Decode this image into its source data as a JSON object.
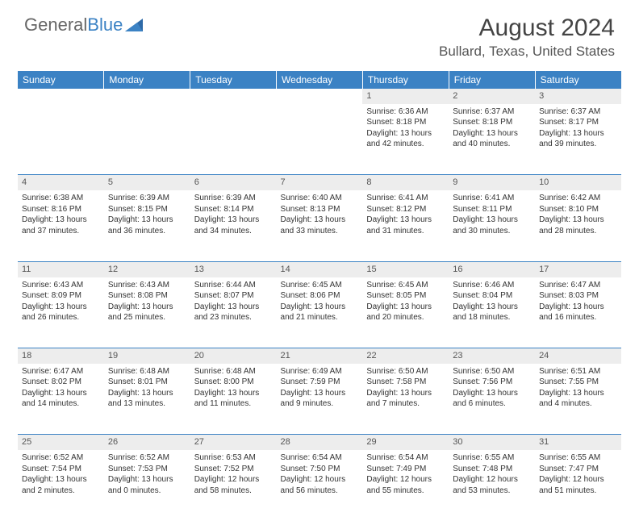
{
  "logo": {
    "text1": "General",
    "text2": "Blue"
  },
  "title": "August 2024",
  "location": "Bullard, Texas, United States",
  "colors": {
    "header_bg": "#3b82c4",
    "header_text": "#ffffff",
    "daynum_bg": "#ededed",
    "border": "#3b82c4",
    "text": "#333333",
    "logo_gray": "#666666",
    "logo_blue": "#3b82c4"
  },
  "weekdays": [
    "Sunday",
    "Monday",
    "Tuesday",
    "Wednesday",
    "Thursday",
    "Friday",
    "Saturday"
  ],
  "weeks": [
    {
      "nums": [
        "",
        "",
        "",
        "",
        "1",
        "2",
        "3"
      ],
      "cells": [
        null,
        null,
        null,
        null,
        {
          "sunrise": "6:36 AM",
          "sunset": "8:18 PM",
          "dl1": "Daylight: 13 hours",
          "dl2": "and 42 minutes."
        },
        {
          "sunrise": "6:37 AM",
          "sunset": "8:18 PM",
          "dl1": "Daylight: 13 hours",
          "dl2": "and 40 minutes."
        },
        {
          "sunrise": "6:37 AM",
          "sunset": "8:17 PM",
          "dl1": "Daylight: 13 hours",
          "dl2": "and 39 minutes."
        }
      ]
    },
    {
      "nums": [
        "4",
        "5",
        "6",
        "7",
        "8",
        "9",
        "10"
      ],
      "cells": [
        {
          "sunrise": "6:38 AM",
          "sunset": "8:16 PM",
          "dl1": "Daylight: 13 hours",
          "dl2": "and 37 minutes."
        },
        {
          "sunrise": "6:39 AM",
          "sunset": "8:15 PM",
          "dl1": "Daylight: 13 hours",
          "dl2": "and 36 minutes."
        },
        {
          "sunrise": "6:39 AM",
          "sunset": "8:14 PM",
          "dl1": "Daylight: 13 hours",
          "dl2": "and 34 minutes."
        },
        {
          "sunrise": "6:40 AM",
          "sunset": "8:13 PM",
          "dl1": "Daylight: 13 hours",
          "dl2": "and 33 minutes."
        },
        {
          "sunrise": "6:41 AM",
          "sunset": "8:12 PM",
          "dl1": "Daylight: 13 hours",
          "dl2": "and 31 minutes."
        },
        {
          "sunrise": "6:41 AM",
          "sunset": "8:11 PM",
          "dl1": "Daylight: 13 hours",
          "dl2": "and 30 minutes."
        },
        {
          "sunrise": "6:42 AM",
          "sunset": "8:10 PM",
          "dl1": "Daylight: 13 hours",
          "dl2": "and 28 minutes."
        }
      ]
    },
    {
      "nums": [
        "11",
        "12",
        "13",
        "14",
        "15",
        "16",
        "17"
      ],
      "cells": [
        {
          "sunrise": "6:43 AM",
          "sunset": "8:09 PM",
          "dl1": "Daylight: 13 hours",
          "dl2": "and 26 minutes."
        },
        {
          "sunrise": "6:43 AM",
          "sunset": "8:08 PM",
          "dl1": "Daylight: 13 hours",
          "dl2": "and 25 minutes."
        },
        {
          "sunrise": "6:44 AM",
          "sunset": "8:07 PM",
          "dl1": "Daylight: 13 hours",
          "dl2": "and 23 minutes."
        },
        {
          "sunrise": "6:45 AM",
          "sunset": "8:06 PM",
          "dl1": "Daylight: 13 hours",
          "dl2": "and 21 minutes."
        },
        {
          "sunrise": "6:45 AM",
          "sunset": "8:05 PM",
          "dl1": "Daylight: 13 hours",
          "dl2": "and 20 minutes."
        },
        {
          "sunrise": "6:46 AM",
          "sunset": "8:04 PM",
          "dl1": "Daylight: 13 hours",
          "dl2": "and 18 minutes."
        },
        {
          "sunrise": "6:47 AM",
          "sunset": "8:03 PM",
          "dl1": "Daylight: 13 hours",
          "dl2": "and 16 minutes."
        }
      ]
    },
    {
      "nums": [
        "18",
        "19",
        "20",
        "21",
        "22",
        "23",
        "24"
      ],
      "cells": [
        {
          "sunrise": "6:47 AM",
          "sunset": "8:02 PM",
          "dl1": "Daylight: 13 hours",
          "dl2": "and 14 minutes."
        },
        {
          "sunrise": "6:48 AM",
          "sunset": "8:01 PM",
          "dl1": "Daylight: 13 hours",
          "dl2": "and 13 minutes."
        },
        {
          "sunrise": "6:48 AM",
          "sunset": "8:00 PM",
          "dl1": "Daylight: 13 hours",
          "dl2": "and 11 minutes."
        },
        {
          "sunrise": "6:49 AM",
          "sunset": "7:59 PM",
          "dl1": "Daylight: 13 hours",
          "dl2": "and 9 minutes."
        },
        {
          "sunrise": "6:50 AM",
          "sunset": "7:58 PM",
          "dl1": "Daylight: 13 hours",
          "dl2": "and 7 minutes."
        },
        {
          "sunrise": "6:50 AM",
          "sunset": "7:56 PM",
          "dl1": "Daylight: 13 hours",
          "dl2": "and 6 minutes."
        },
        {
          "sunrise": "6:51 AM",
          "sunset": "7:55 PM",
          "dl1": "Daylight: 13 hours",
          "dl2": "and 4 minutes."
        }
      ]
    },
    {
      "nums": [
        "25",
        "26",
        "27",
        "28",
        "29",
        "30",
        "31"
      ],
      "cells": [
        {
          "sunrise": "6:52 AM",
          "sunset": "7:54 PM",
          "dl1": "Daylight: 13 hours",
          "dl2": "and 2 minutes."
        },
        {
          "sunrise": "6:52 AM",
          "sunset": "7:53 PM",
          "dl1": "Daylight: 13 hours",
          "dl2": "and 0 minutes."
        },
        {
          "sunrise": "6:53 AM",
          "sunset": "7:52 PM",
          "dl1": "Daylight: 12 hours",
          "dl2": "and 58 minutes."
        },
        {
          "sunrise": "6:54 AM",
          "sunset": "7:50 PM",
          "dl1": "Daylight: 12 hours",
          "dl2": "and 56 minutes."
        },
        {
          "sunrise": "6:54 AM",
          "sunset": "7:49 PM",
          "dl1": "Daylight: 12 hours",
          "dl2": "and 55 minutes."
        },
        {
          "sunrise": "6:55 AM",
          "sunset": "7:48 PM",
          "dl1": "Daylight: 12 hours",
          "dl2": "and 53 minutes."
        },
        {
          "sunrise": "6:55 AM",
          "sunset": "7:47 PM",
          "dl1": "Daylight: 12 hours",
          "dl2": "and 51 minutes."
        }
      ]
    }
  ],
  "labels": {
    "sunrise": "Sunrise:",
    "sunset": "Sunset:"
  }
}
